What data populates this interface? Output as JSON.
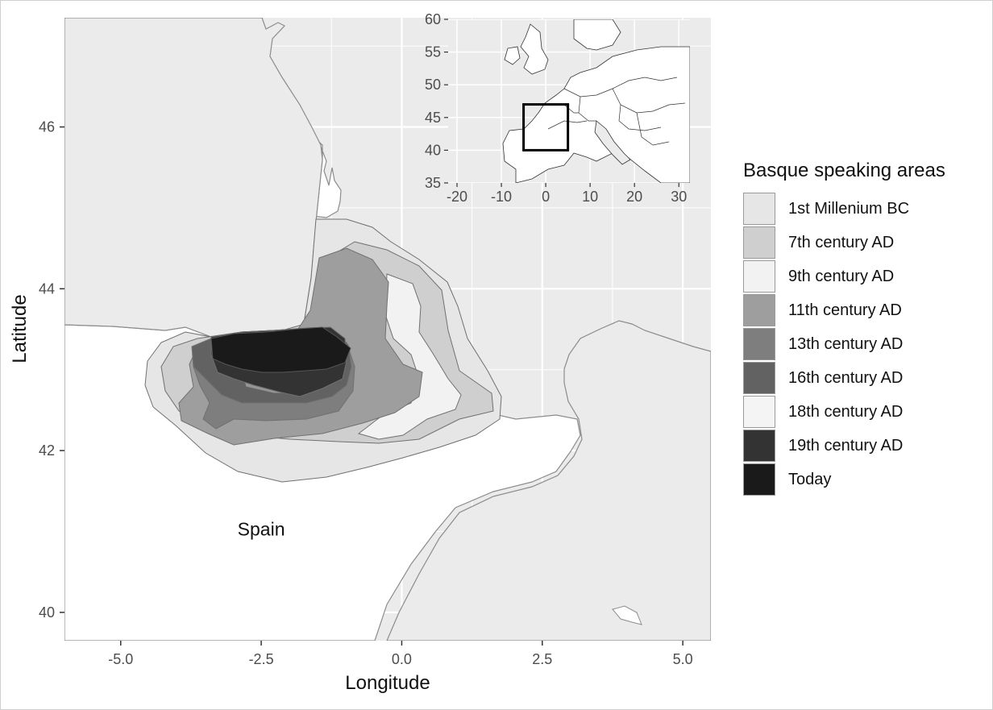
{
  "chart_data": {
    "type": "map",
    "xlabel": "Longitude",
    "ylabel": "Latitude",
    "xlim": [
      -6.0,
      5.5
    ],
    "ylim": [
      39.65,
      47.35
    ],
    "x_ticks": [
      {
        "value": -5.0,
        "label": "-5.0"
      },
      {
        "value": -2.5,
        "label": "-2.5"
      },
      {
        "value": 0.0,
        "label": "0.0"
      },
      {
        "value": 2.5,
        "label": "2.5"
      },
      {
        "value": 5.0,
        "label": "5.0"
      }
    ],
    "y_ticks": [
      {
        "value": 40,
        "label": "40"
      },
      {
        "value": 42,
        "label": "42"
      },
      {
        "value": 44,
        "label": "44"
      },
      {
        "value": 46,
        "label": "46"
      }
    ],
    "grid": true,
    "annotations": [
      {
        "text": "Spain",
        "lon": -2.5,
        "lat": 40.95
      }
    ],
    "colors": {
      "panel": "#ebebeb",
      "land": "#ffffff",
      "gridline": "#ffffff",
      "boundary": "#8c8c8c"
    },
    "legend": {
      "title": "Basque speaking areas",
      "placement": "right",
      "entries": [
        {
          "label": "1st Millenium BC",
          "color": "#e6e6e6"
        },
        {
          "label": "7th century AD",
          "color": "#cfcfcf"
        },
        {
          "label": "9th century AD",
          "color": "#f2f2f2"
        },
        {
          "label": "11th century AD",
          "color": "#9e9e9e"
        },
        {
          "label": "13th century AD",
          "color": "#7e7e7e"
        },
        {
          "label": "16th century AD",
          "color": "#626262"
        },
        {
          "label": "18th century AD",
          "color": "#f4f4f4"
        },
        {
          "label": "19th century AD",
          "color": "#333333"
        },
        {
          "label": "Today",
          "color": "#1a1a1a"
        }
      ]
    },
    "inset": {
      "description_visible": false,
      "xlim": [
        -22,
        32.5
      ],
      "ylim": [
        35,
        60
      ],
      "x_ticks": [
        {
          "value": -20,
          "label": "-20"
        },
        {
          "value": -10,
          "label": "-10"
        },
        {
          "value": 0,
          "label": "0"
        },
        {
          "value": 10,
          "label": "10"
        },
        {
          "value": 20,
          "label": "20"
        },
        {
          "value": 30,
          "label": "30"
        }
      ],
      "y_ticks": [
        {
          "value": 35,
          "label": "35"
        },
        {
          "value": 40,
          "label": "40"
        },
        {
          "value": 45,
          "label": "45"
        },
        {
          "value": 50,
          "label": "50"
        },
        {
          "value": 55,
          "label": "55"
        },
        {
          "value": 60,
          "label": "60"
        }
      ],
      "highlight_box": {
        "lon": [
          -5,
          5
        ],
        "lat": [
          40,
          47
        ]
      }
    }
  }
}
